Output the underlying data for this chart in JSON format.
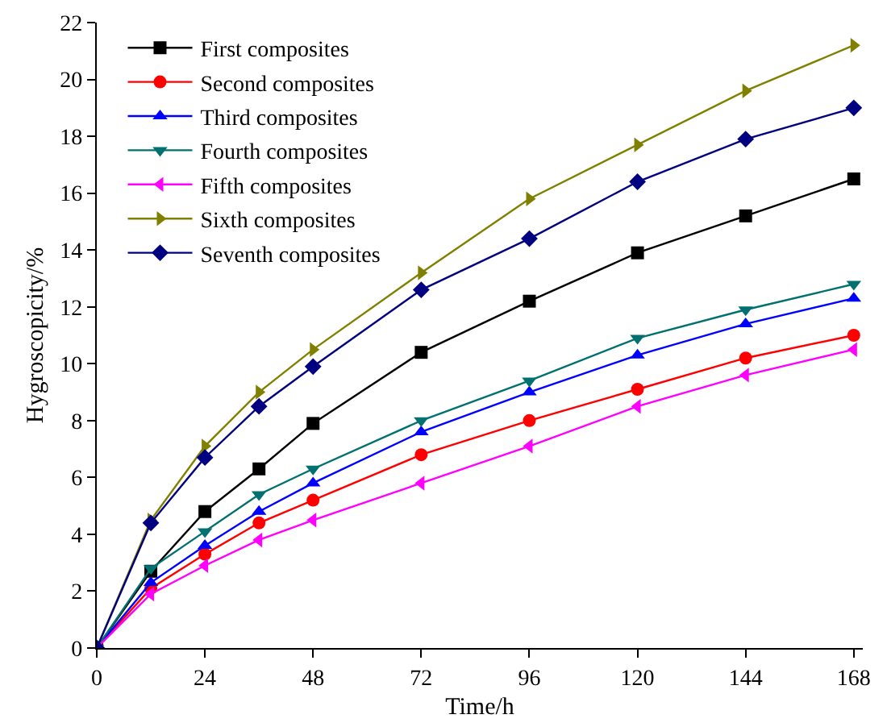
{
  "chart_data": {
    "type": "line",
    "xlabel": "Time/h",
    "ylabel": "Hygroscopicity/%",
    "x": [
      0,
      12,
      24,
      36,
      48,
      72,
      96,
      120,
      144,
      168
    ],
    "xlim": [
      0,
      170
    ],
    "xticks": [
      0,
      24,
      48,
      72,
      96,
      120,
      144,
      168
    ],
    "ylim": [
      0,
      22
    ],
    "yticks": [
      0,
      2,
      4,
      6,
      8,
      10,
      12,
      14,
      16,
      18,
      20,
      22
    ],
    "legend": "top left",
    "line_style": "solid",
    "series": [
      {
        "name": "First composites",
        "color": "#000000",
        "marker": "square",
        "values": [
          0,
          2.7,
          4.8,
          6.3,
          7.9,
          10.4,
          12.2,
          13.9,
          15.2,
          16.5
        ]
      },
      {
        "name": "Second composites",
        "color": "#ff0000",
        "marker": "circle",
        "values": [
          0,
          2.1,
          3.3,
          4.4,
          5.2,
          6.8,
          8.0,
          9.1,
          10.2,
          11.0
        ]
      },
      {
        "name": "Third composites",
        "color": "#0000ff",
        "marker": "triangle",
        "values": [
          0,
          2.3,
          3.6,
          4.8,
          5.8,
          7.6,
          9.0,
          10.3,
          11.4,
          12.3
        ]
      },
      {
        "name": "Fourth composites",
        "color": "#007070",
        "marker": "triangle-down",
        "values": [
          0,
          2.8,
          4.1,
          5.4,
          6.3,
          8.0,
          9.4,
          10.9,
          11.9,
          12.8
        ]
      },
      {
        "name": "Fifth composites",
        "color": "#ff00ff",
        "marker": "triangle-left",
        "values": [
          0,
          1.9,
          2.9,
          3.8,
          4.5,
          5.8,
          7.1,
          8.5,
          9.6,
          10.5
        ]
      },
      {
        "name": "Sixth composites",
        "color": "#808000",
        "marker": "triangle-right",
        "values": [
          0,
          4.5,
          7.1,
          9.0,
          10.5,
          13.2,
          15.8,
          17.7,
          19.6,
          21.2
        ]
      },
      {
        "name": "Seventh composites",
        "color": "#000080",
        "marker": "diamond",
        "values": [
          0,
          4.4,
          6.7,
          8.5,
          9.9,
          12.6,
          14.4,
          16.4,
          17.9,
          19.0
        ]
      }
    ]
  }
}
